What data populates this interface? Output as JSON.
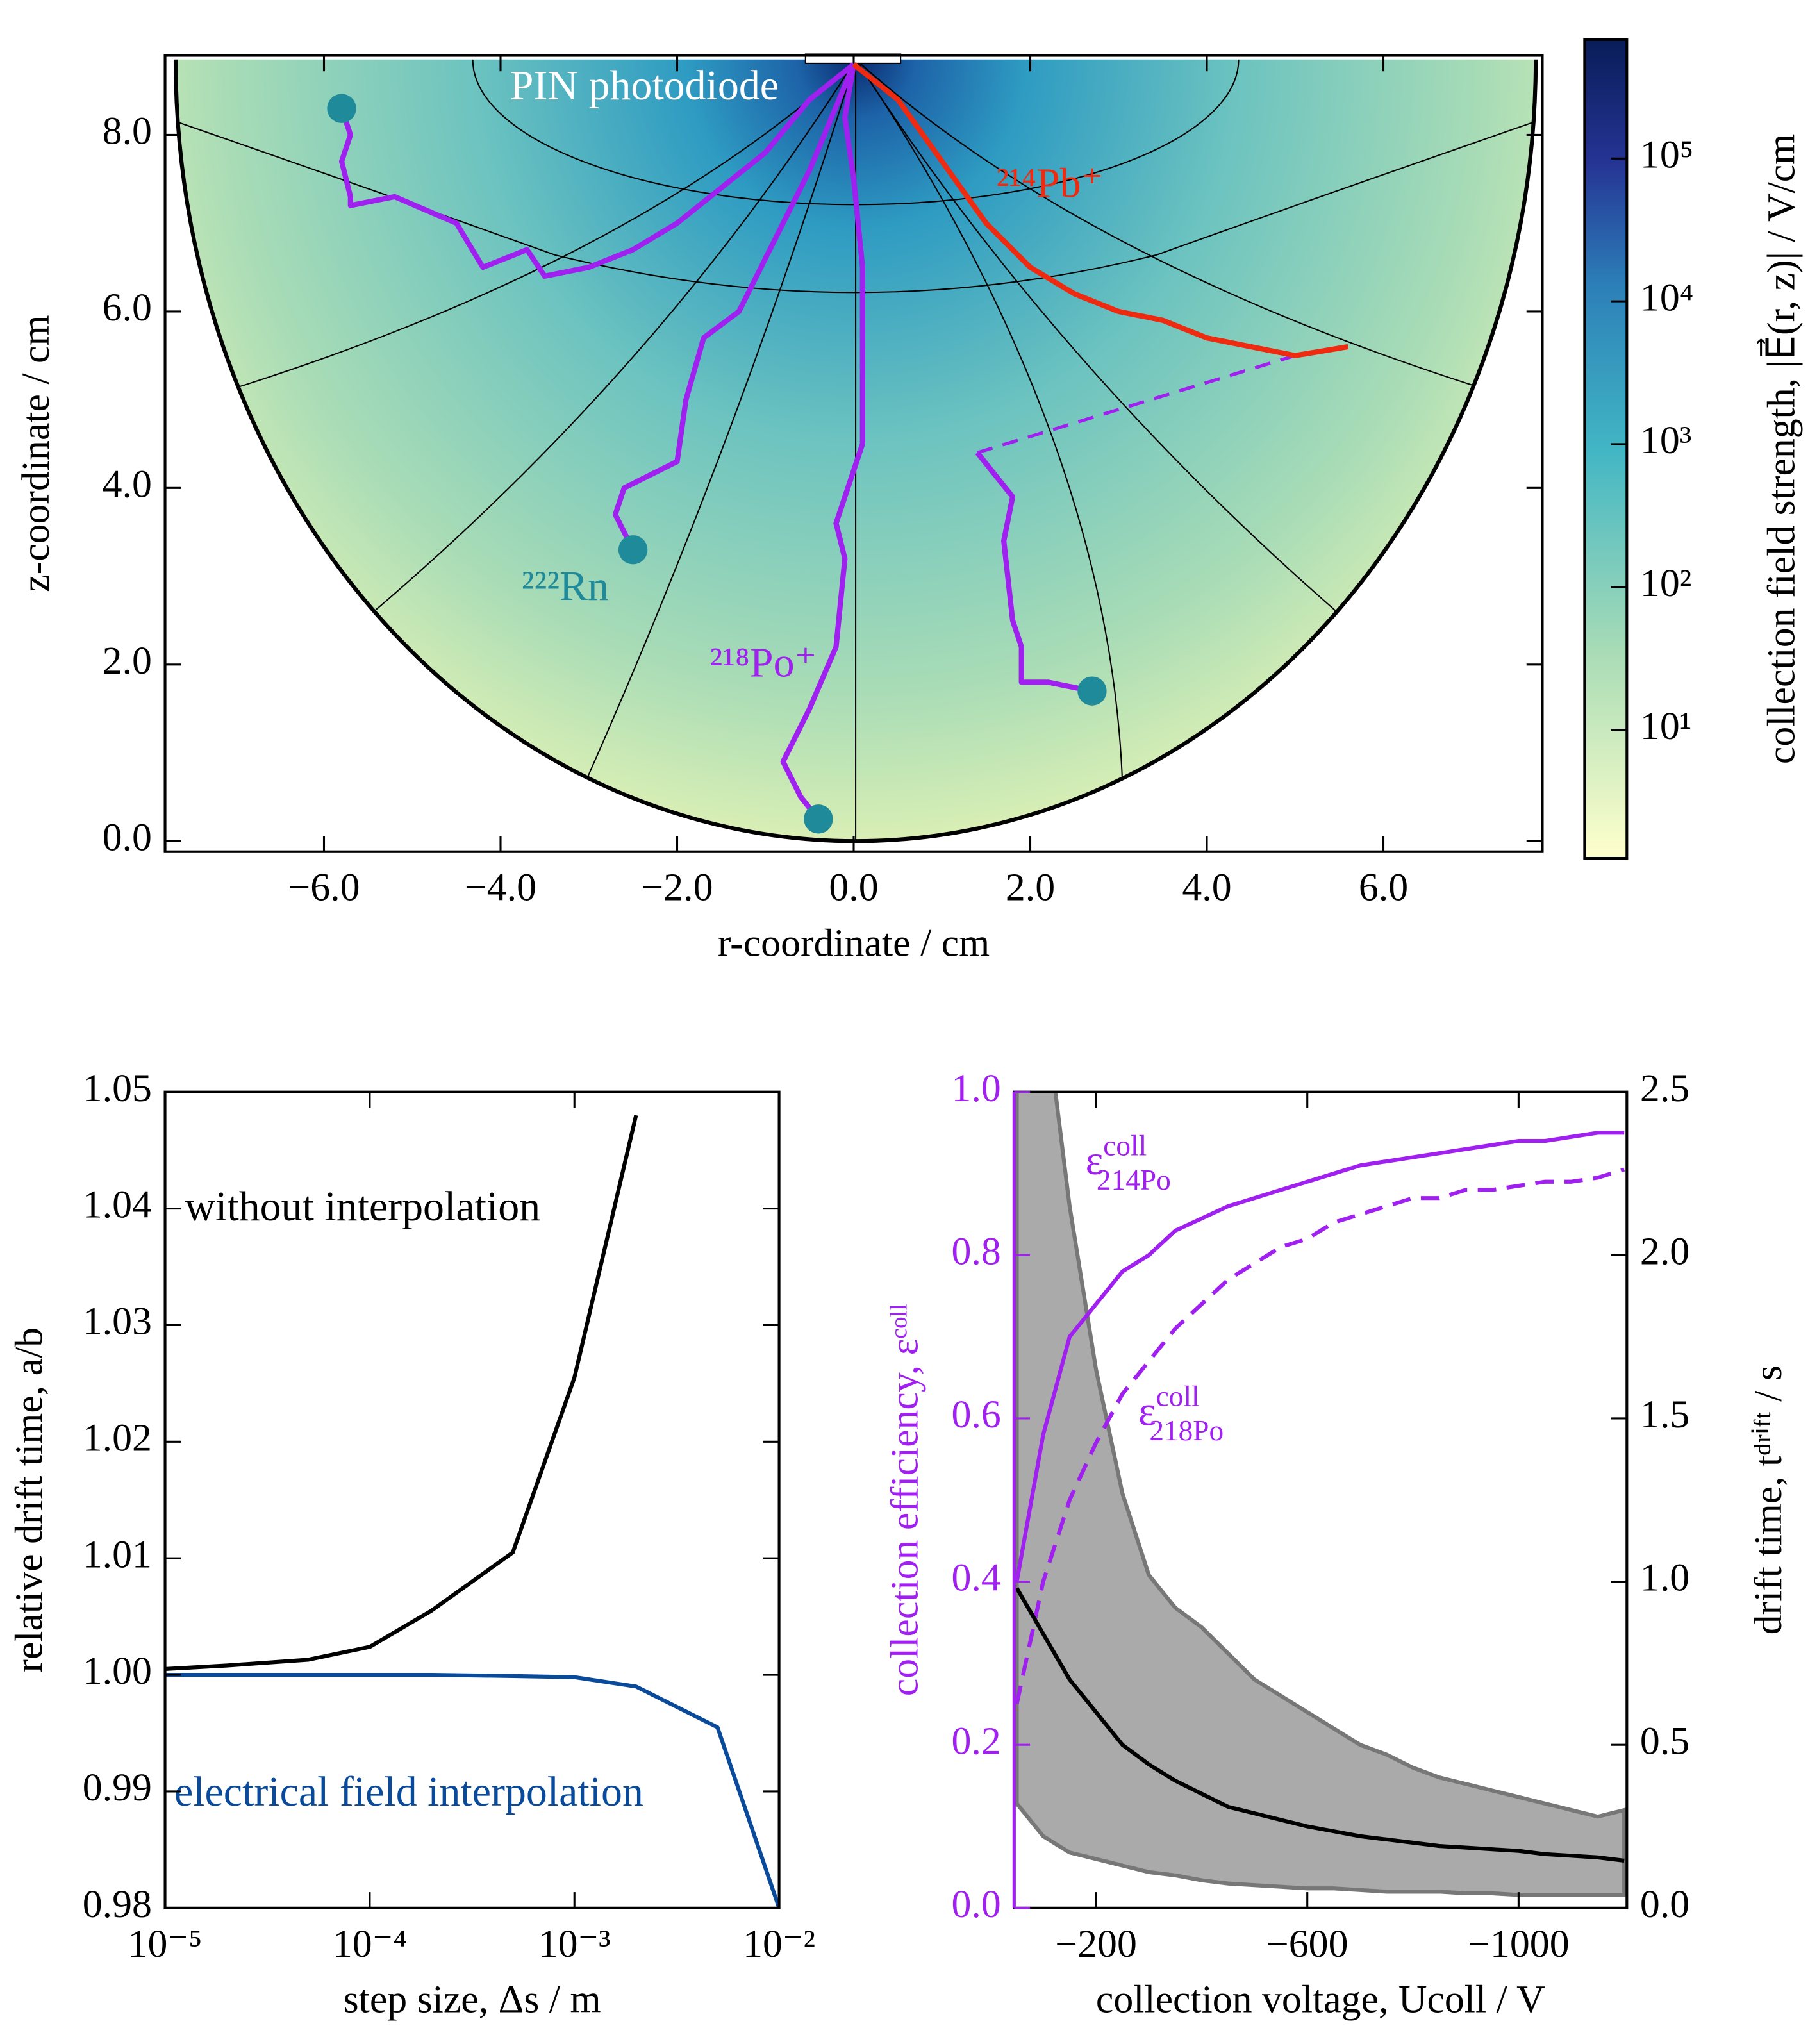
{
  "chart_data": [
    {
      "type": "heatmap-tracks",
      "xlabel": "r-coordinate / cm",
      "ylabel": "z-coordinate / cm",
      "xlim": [
        -7.8,
        7.8
      ],
      "ylim": [
        -0.12,
        8.9
      ],
      "xticks": [
        {
          "value": -6,
          "label": "−6.0"
        },
        {
          "value": -4,
          "label": "−4.0"
        },
        {
          "value": -2,
          "label": "−2.0"
        },
        {
          "value": 0,
          "label": "0.0"
        },
        {
          "value": 2,
          "label": "2.0"
        },
        {
          "value": 4,
          "label": "4.0"
        },
        {
          "value": 6,
          "label": "6.0"
        }
      ],
      "yticks": [
        {
          "value": 0,
          "label": "0.0"
        },
        {
          "value": 2,
          "label": "2.0"
        },
        {
          "value": 4,
          "label": "4.0"
        },
        {
          "value": 6,
          "label": "6.0"
        },
        {
          "value": 8,
          "label": "8.0"
        }
      ],
      "colorbar": {
        "label": "collection field strength, |E⃗(r, z)| / V/cm",
        "log": true,
        "clim": [
          1.26,
          680000
        ],
        "ticks": [
          {
            "value": 10,
            "label": "10¹"
          },
          {
            "value": 100,
            "label": "10²"
          },
          {
            "value": 1000,
            "label": "10³"
          },
          {
            "value": 10000,
            "label": "10⁴"
          },
          {
            "value": 100000,
            "label": "10⁵"
          }
        ]
      },
      "annotations": [
        "PIN photodiode",
        "²²²Rn",
        "²¹⁸Po⁺",
        "²¹⁴Pb⁺"
      ],
      "tracks": [
        {
          "color": "#a020f0",
          "dashed": false,
          "x": [
            -5.8,
            -5.7,
            -5.8,
            -5.7,
            -5.7,
            -5.2,
            -4.5,
            -4.2,
            -3.7,
            -3.5,
            -3.0,
            -2.5,
            -2.0,
            -1.0,
            -0.5,
            0
          ],
          "y": [
            8.3,
            8.0,
            7.7,
            7.3,
            7.2,
            7.3,
            7.0,
            6.5,
            6.7,
            6.4,
            6.5,
            6.7,
            7.0,
            7.8,
            8.4,
            8.8
          ]
        },
        {
          "color": "#a020f0",
          "dashed": false,
          "x": [
            -2.5,
            -2.7,
            -2.6,
            -2.0,
            -1.9,
            -1.7,
            -1.3,
            -1.0,
            -0.5,
            0
          ],
          "y": [
            3.3,
            3.7,
            4.0,
            4.3,
            5.0,
            5.7,
            6.0,
            6.6,
            7.6,
            8.8
          ]
        },
        {
          "color": "#a020f0",
          "dashed": false,
          "x": [
            -0.4,
            -0.6,
            -0.8,
            -0.5,
            -0.2,
            -0.1,
            -0.2,
            0.1,
            0.1,
            0.1,
            0.0,
            -0.1,
            0
          ],
          "y": [
            0.25,
            0.5,
            0.9,
            1.5,
            2.2,
            3.2,
            3.6,
            4.5,
            5.5,
            6.5,
            7.5,
            8.2,
            8.8
          ]
        },
        {
          "color": "#a020f0",
          "dashed": false,
          "x": [
            2.7,
            2.2,
            1.9,
            1.9,
            1.8,
            1.7,
            1.8,
            1.4
          ],
          "y": [
            1.7,
            1.8,
            1.8,
            2.2,
            2.5,
            3.4,
            3.9,
            4.4
          ]
        },
        {
          "color": "#a020f0",
          "dashed": true,
          "x": [
            1.4,
            5.0
          ],
          "y": [
            4.4,
            5.5
          ]
        },
        {
          "color": "#ee2a10",
          "dashed": false,
          "x": [
            5.6,
            5.0,
            4.5,
            4.0,
            3.5,
            3.0,
            2.5,
            2.0,
            1.5,
            1.0,
            0.5,
            0
          ],
          "y": [
            5.6,
            5.5,
            5.6,
            5.7,
            5.9,
            6.0,
            6.2,
            6.5,
            7.0,
            7.7,
            8.4,
            8.8
          ]
        }
      ],
      "markers": {
        "color": "#1f8a9a",
        "x": [
          -5.8,
          -2.5,
          -0.4,
          2.7
        ],
        "y": [
          8.3,
          3.3,
          0.25,
          1.7
        ]
      }
    },
    {
      "type": "line",
      "xlabel": "step size, Δs / m",
      "ylabel": "relative drift time, a/b",
      "xlog": true,
      "xlim": [
        1e-05,
        0.01
      ],
      "ylim": [
        0.98,
        1.05
      ],
      "xticks": [
        {
          "value": 1e-05,
          "label": "10⁻⁵"
        },
        {
          "value": 0.0001,
          "label": "10⁻⁴"
        },
        {
          "value": 0.001,
          "label": "10⁻³"
        },
        {
          "value": 0.01,
          "label": "10⁻²"
        }
      ],
      "yticks": [
        0.98,
        0.99,
        {
          "value": 1,
          "label": "1.00"
        },
        1.01,
        1.02,
        1.03,
        1.04,
        1.05
      ],
      "x": [
        1e-05,
        2e-05,
        5e-05,
        0.0001,
        0.0002,
        0.0005,
        0.001,
        0.002,
        0.005,
        0.01
      ],
      "series": [
        {
          "color": "#000000",
          "values": [
            1.0005,
            1.0008,
            1.0013,
            1.0024,
            1.0055,
            1.0105,
            1.0255,
            1.048,
            null,
            null
          ]
        },
        {
          "color": "#0a4a9a",
          "values": [
            1.0,
            1.0,
            1.0,
            1.0,
            1.0,
            0.9999,
            0.9998,
            0.999,
            0.9955,
            0.98
          ]
        }
      ],
      "annotations": [
        "without interpolation",
        "electrical field interpolation"
      ]
    },
    {
      "type": "line",
      "xlabel": "collection voltage, Ucoll / V",
      "ylabel": "collection efficiency, εᶜᵒˡˡ",
      "y2label": "drift time, tᵈʳⁱᶠᵗ / s",
      "left_axis_color": "#a020f0",
      "xlim": [
        -45,
        -1205
      ],
      "ylim": [
        0,
        1
      ],
      "y2lim": [
        0,
        2.5
      ],
      "xticks": [
        {
          "value": -200,
          "label": "−200"
        },
        {
          "value": -600,
          "label": "−600"
        },
        {
          "value": -1000,
          "label": "−1000"
        }
      ],
      "yticks": [
        {
          "value": 0,
          "label": "0.0"
        },
        0.2,
        0.4,
        0.6,
        0.8,
        {
          "value": 1,
          "label": "1.0"
        }
      ],
      "y2ticks": [
        {
          "value": 0,
          "label": "0.0"
        },
        0.5,
        {
          "value": 1,
          "label": "1.0"
        },
        1.5,
        {
          "value": 2,
          "label": "2.0"
        },
        2.5
      ],
      "x": [
        -50,
        -100,
        -150,
        -200,
        -250,
        -300,
        -350,
        -400,
        -450,
        -500,
        -550,
        -600,
        -650,
        -700,
        -750,
        -800,
        -850,
        -900,
        -950,
        -1000,
        -1050,
        -1100,
        -1150,
        -1200
      ],
      "band": {
        "axis": "y2",
        "color": "#aaaaaa",
        "upper": [
          3.6,
          2.8,
          2.15,
          1.65,
          1.27,
          1.02,
          0.92,
          0.86,
          0.78,
          0.7,
          0.65,
          0.6,
          0.55,
          0.5,
          0.47,
          0.43,
          0.4,
          0.38,
          0.36,
          0.34,
          0.32,
          0.3,
          0.28,
          0.3
        ],
        "lower": [
          0.32,
          0.22,
          0.17,
          0.15,
          0.13,
          0.11,
          0.1,
          0.085,
          0.075,
          0.07,
          0.065,
          0.06,
          0.06,
          0.055,
          0.05,
          0.05,
          0.05,
          0.045,
          0.045,
          0.04,
          0.04,
          0.04,
          0.04,
          0.04
        ]
      },
      "series": [
        {
          "color": "#a020f0",
          "values": [
            0.4,
            0.58,
            0.7,
            0.74,
            0.78,
            0.8,
            0.83,
            0.845,
            0.86,
            0.87,
            0.88,
            0.89,
            0.9,
            0.91,
            0.915,
            0.92,
            0.925,
            0.93,
            0.935,
            0.94,
            0.94,
            0.945,
            0.95,
            0.95
          ]
        },
        {
          "color": "#a020f0",
          "dashed": true,
          "values": [
            0.25,
            0.4,
            0.5,
            0.57,
            0.63,
            0.67,
            0.71,
            0.74,
            0.77,
            0.79,
            0.81,
            0.82,
            0.84,
            0.85,
            0.86,
            0.87,
            0.87,
            0.88,
            0.88,
            0.885,
            0.89,
            0.89,
            0.895,
            0.905
          ]
        },
        {
          "color": "#000000",
          "axis": "y2",
          "values": [
            0.98,
            0.84,
            0.7,
            0.6,
            0.5,
            0.44,
            0.39,
            0.35,
            0.31,
            0.29,
            0.27,
            0.25,
            0.235,
            0.22,
            0.21,
            0.2,
            0.19,
            0.185,
            0.18,
            0.175,
            0.165,
            0.16,
            0.155,
            0.145
          ]
        }
      ],
      "annotations": [
        {
          "symbol": "ε",
          "sup": "coll",
          "sub": "214Po"
        },
        {
          "symbol": "ε",
          "sup": "coll",
          "sub": "218Po"
        }
      ]
    }
  ]
}
